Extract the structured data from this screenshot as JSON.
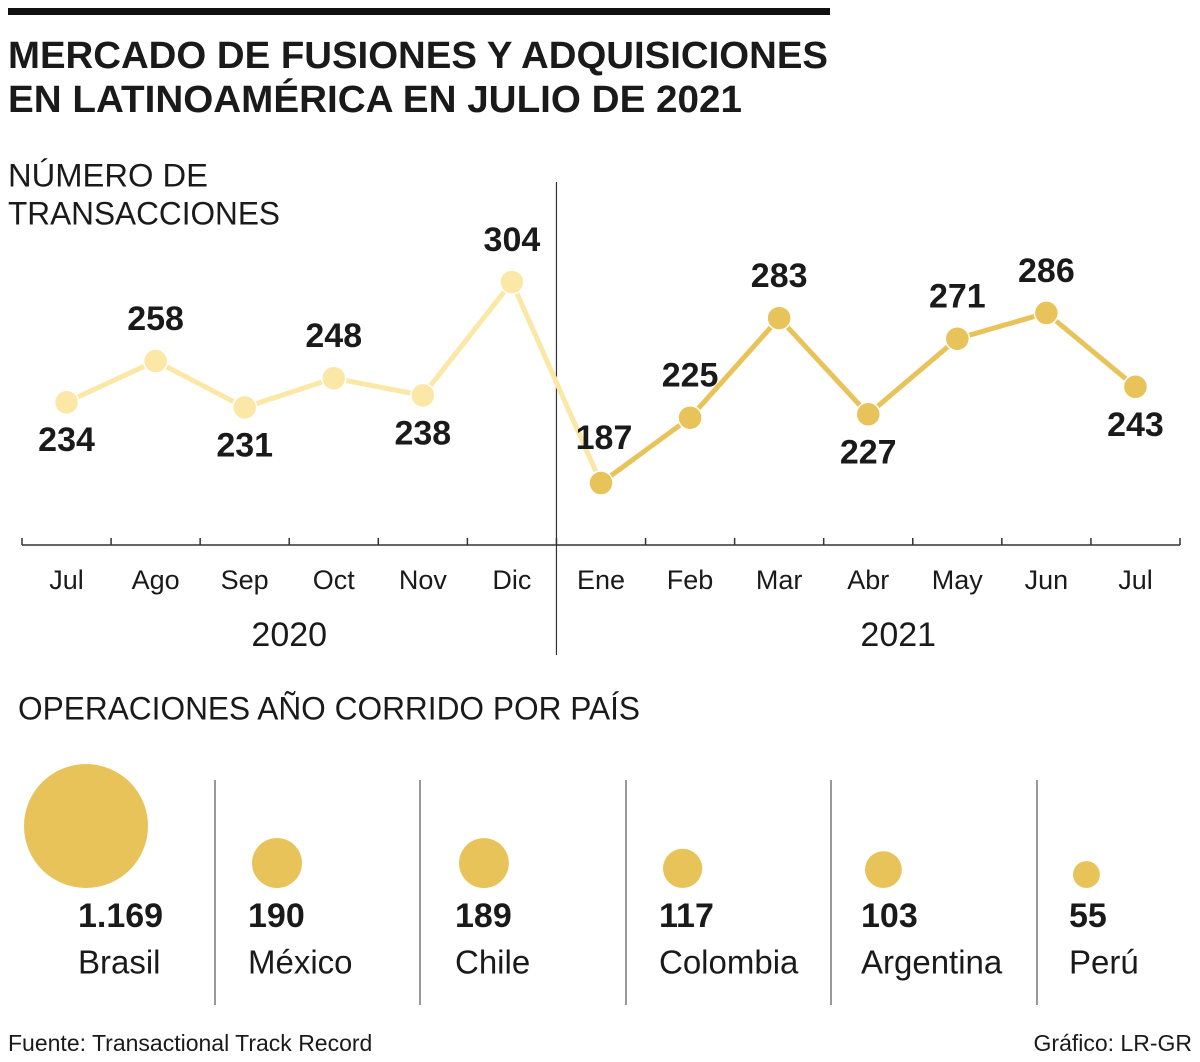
{
  "title": [
    "MERCADO DE FUSIONES Y ADQUISICIONES",
    "EN LATINOAMÉRICA EN JULIO DE 2021"
  ],
  "footer": {
    "source": "Fuente: Transactional Track Record",
    "credit": "Gráfico: LR-GR"
  },
  "chart_data": [
    {
      "type": "line",
      "subtitle": [
        "NÚMERO DE",
        "TRANSACCIONES"
      ],
      "groups": [
        {
          "label": "2020",
          "color": "#fbe7a6",
          "categories": [
            "Jul",
            "Ago",
            "Sep",
            "Oct",
            "Nov",
            "Dic"
          ]
        },
        {
          "label": "2021",
          "color": "#e8c35a",
          "categories": [
            "Ene",
            "Feb",
            "Mar",
            "Abr",
            "May",
            "Jun",
            "Jul"
          ]
        }
      ],
      "values": [
        234,
        258,
        231,
        248,
        238,
        304,
        187,
        225,
        283,
        227,
        271,
        286,
        243
      ]
    },
    {
      "type": "bubble",
      "title": "OPERACIONES AÑO CORRIDO POR PAÍS",
      "categories": [
        "Brasil",
        "México",
        "Chile",
        "Colombia",
        "Argentina",
        "Perú"
      ],
      "values": [
        1169,
        190,
        189,
        117,
        103,
        55
      ],
      "value_labels": [
        "1.169",
        "190",
        "189",
        "117",
        "103",
        "55"
      ],
      "color": "#e8c35a"
    }
  ]
}
